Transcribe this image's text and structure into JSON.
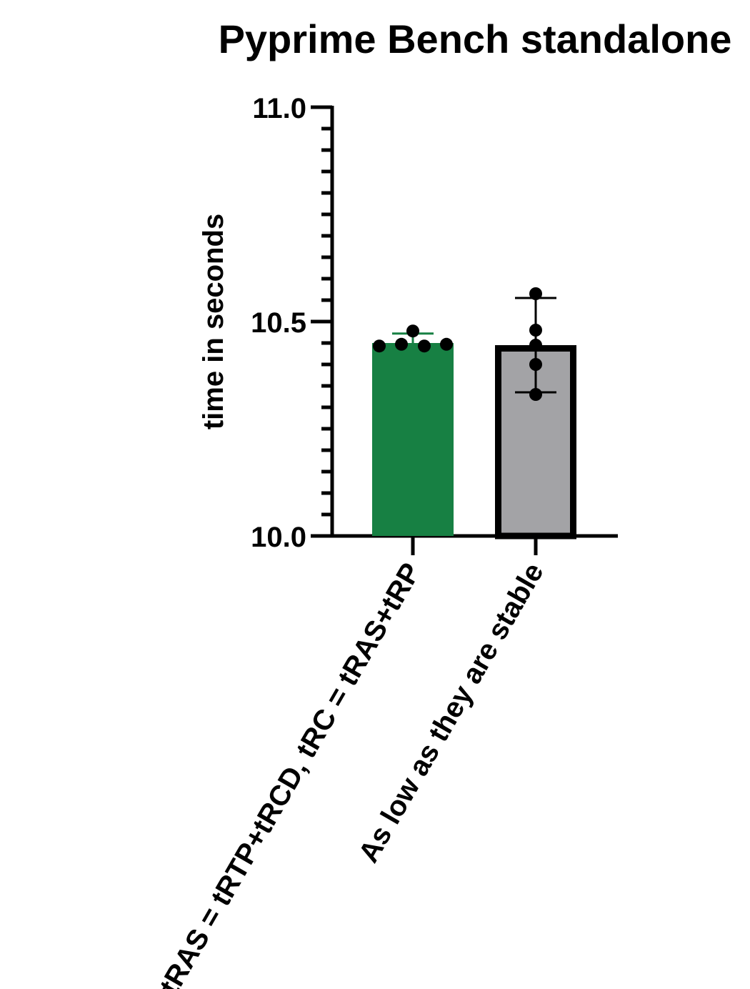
{
  "chart_data": {
    "type": "bar",
    "title": "Pyprime Bench standalone",
    "ylabel": "time in seconds",
    "xlabel": "",
    "ylim": [
      10.0,
      11.0
    ],
    "yticks": [
      "10.0",
      "10.5",
      "11.0"
    ],
    "minor_tick_step": 0.05,
    "grid": false,
    "categories": [
      "tRAS = tRTP+tRCD, tRC = tRAS+tRP",
      "As low as they are stable"
    ],
    "series": [
      {
        "values": [
          10.45,
          10.445
        ],
        "error_low": [
          10.445,
          10.335
        ],
        "error_high": [
          10.472,
          10.555
        ],
        "points": [
          [
            10.443,
            10.447,
            10.478,
            10.443,
            10.447
          ],
          [
            10.565,
            10.48,
            10.445,
            10.4,
            10.33
          ]
        ]
      }
    ],
    "colors": {
      "bar_0_fill": "#178043",
      "bar_0_stroke": "#178043",
      "bar_1_fill": "#a3a3a6",
      "bar_1_stroke": "#000000",
      "error_0": "#178043",
      "error_1": "#000000",
      "points": "#000000",
      "axis": "#000000"
    }
  }
}
